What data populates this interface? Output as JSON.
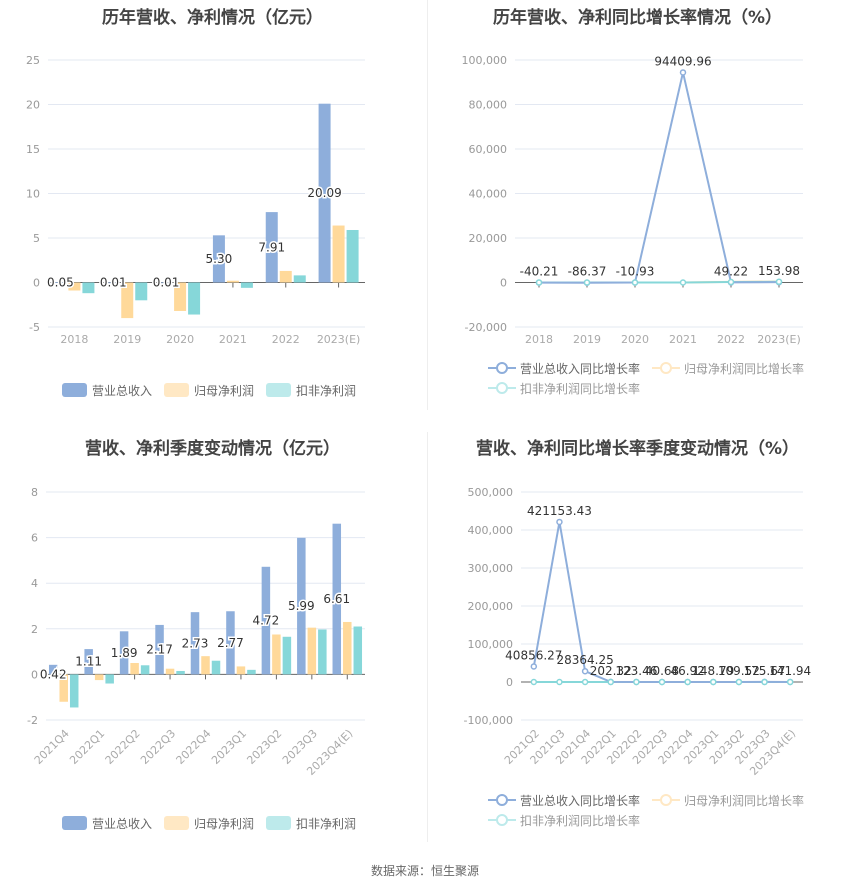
{
  "footer": {
    "source": "数据来源：恒生聚源"
  },
  "colors": {
    "revenue": "#8eaedb",
    "net_profit": "#ffd99a",
    "deducted_profit": "#86d7d9",
    "legend_net_light": "#ffe8c4",
    "legend_ded_light": "#bdeaeb"
  },
  "legend_bar": [
    "营业总收入",
    "归母净利润",
    "扣非净利润"
  ],
  "legend_line": [
    "营业总收入同比增长率",
    "归母净利润同比增长率",
    "扣非净利润同比增长率"
  ],
  "chart_data": [
    {
      "id": "annual_amount",
      "type": "bar",
      "title": "历年营收、净利情况（亿元）",
      "categories": [
        "2018",
        "2019",
        "2020",
        "2021",
        "2022",
        "2023(E)"
      ],
      "series": [
        {
          "name": "营业总收入",
          "values": [
            0.05,
            0.01,
            0.01,
            5.3,
            7.91,
            20.09
          ],
          "labels": [
            "0.05",
            "0.01",
            "0.01",
            "5.30",
            "7.91",
            "20.09"
          ]
        },
        {
          "name": "归母净利润",
          "values": [
            -0.9,
            -4.0,
            -3.2,
            0.2,
            1.3,
            6.4
          ]
        },
        {
          "name": "扣非净利润",
          "values": [
            -1.2,
            -2.0,
            -3.6,
            -0.6,
            0.8,
            5.9
          ]
        }
      ],
      "yticks": [
        "25",
        "20",
        "15",
        "10",
        "5",
        "0",
        "-5"
      ],
      "ylim": [
        -5,
        25
      ],
      "grid": true,
      "legend_position": "bottom"
    },
    {
      "id": "annual_growth",
      "type": "line",
      "title": "历年营收、净利同比增长率情况（%）",
      "categories": [
        "2018",
        "2019",
        "2020",
        "2021",
        "2022",
        "2023(E)"
      ],
      "series": [
        {
          "name": "营业总收入同比增长率",
          "values": [
            -40.21,
            -86.37,
            -10.93,
            94409.96,
            49.22,
            153.98
          ],
          "labels": [
            "-40.21",
            "-86.37",
            "-10.93",
            "94409.96",
            "49.22",
            "153.98"
          ]
        },
        {
          "name": "归母净利润同比增长率",
          "values": [
            0,
            0,
            0,
            0,
            300,
            400
          ]
        },
        {
          "name": "扣非净利润同比增长率",
          "values": [
            0,
            0,
            0,
            0,
            200,
            350
          ]
        }
      ],
      "yticks": [
        "100,000",
        "80,000",
        "60,000",
        "40,000",
        "20,000",
        "0",
        "-20,000"
      ],
      "ylim": [
        -20000,
        100000
      ],
      "grid": true,
      "legend_position": "bottom"
    },
    {
      "id": "quarterly_amount",
      "type": "bar",
      "title": "营收、净利季度变动情况（亿元）",
      "categories": [
        "2021Q4",
        "2022Q1",
        "2022Q2",
        "2022Q3",
        "2022Q4",
        "2023Q1",
        "2023Q2",
        "2023Q3",
        "2023Q4(E)"
      ],
      "series": [
        {
          "name": "营业总收入",
          "values": [
            0.42,
            1.11,
            1.89,
            2.17,
            2.73,
            2.77,
            4.72,
            5.99,
            6.61
          ],
          "labels": [
            "0.42",
            "1.11",
            "1.89",
            "2.17",
            "2.73",
            "2.77",
            "4.72",
            "5.99",
            "6.61"
          ]
        },
        {
          "name": "归母净利润",
          "values": [
            -1.2,
            -0.25,
            0.5,
            0.25,
            0.8,
            0.35,
            1.75,
            2.05,
            2.3
          ]
        },
        {
          "name": "扣非净利润",
          "values": [
            -1.45,
            -0.4,
            0.4,
            0.15,
            0.6,
            0.2,
            1.65,
            1.97,
            2.1
          ]
        }
      ],
      "yticks": [
        "8",
        "6",
        "4",
        "2",
        "0",
        "-2"
      ],
      "ylim": [
        -2,
        8
      ],
      "grid": true,
      "legend_position": "bottom"
    },
    {
      "id": "quarterly_growth",
      "type": "line",
      "title": "营收、净利同比增长率季度变动情况（%）",
      "categories": [
        "2021Q2",
        "2021Q3",
        "2021Q4",
        "2022Q1",
        "2022Q2",
        "2022Q3",
        "2022Q4",
        "2023Q1",
        "2023Q2",
        "2023Q3",
        "2023Q4(E)"
      ],
      "series": [
        {
          "name": "营业总收入同比增长率",
          "values": [
            40856.27,
            421153.43,
            28364.25,
            202.32,
            123.46,
            40.68,
            46.92,
            148.79,
            109.52,
            175.67,
            141.94
          ],
          "labels": [
            "40856.27",
            "421153.43",
            "28364.25",
            "202.32",
            "123.46",
            "40.68",
            "46.92",
            "148.79",
            "109.52",
            "175.67",
            "141.94"
          ]
        },
        {
          "name": "归母净利润同比增长率",
          "values": [
            0,
            0,
            0,
            0,
            0,
            0,
            0,
            0,
            0,
            0,
            0
          ]
        },
        {
          "name": "扣非净利润同比增长率",
          "values": [
            0,
            0,
            0,
            0,
            0,
            0,
            0,
            0,
            0,
            0,
            0
          ]
        }
      ],
      "yticks": [
        "500,000",
        "400,000",
        "300,000",
        "200,000",
        "100,000",
        "0",
        "-100,000"
      ],
      "ylim": [
        -100000,
        500000
      ],
      "grid": true,
      "legend_position": "bottom"
    }
  ]
}
